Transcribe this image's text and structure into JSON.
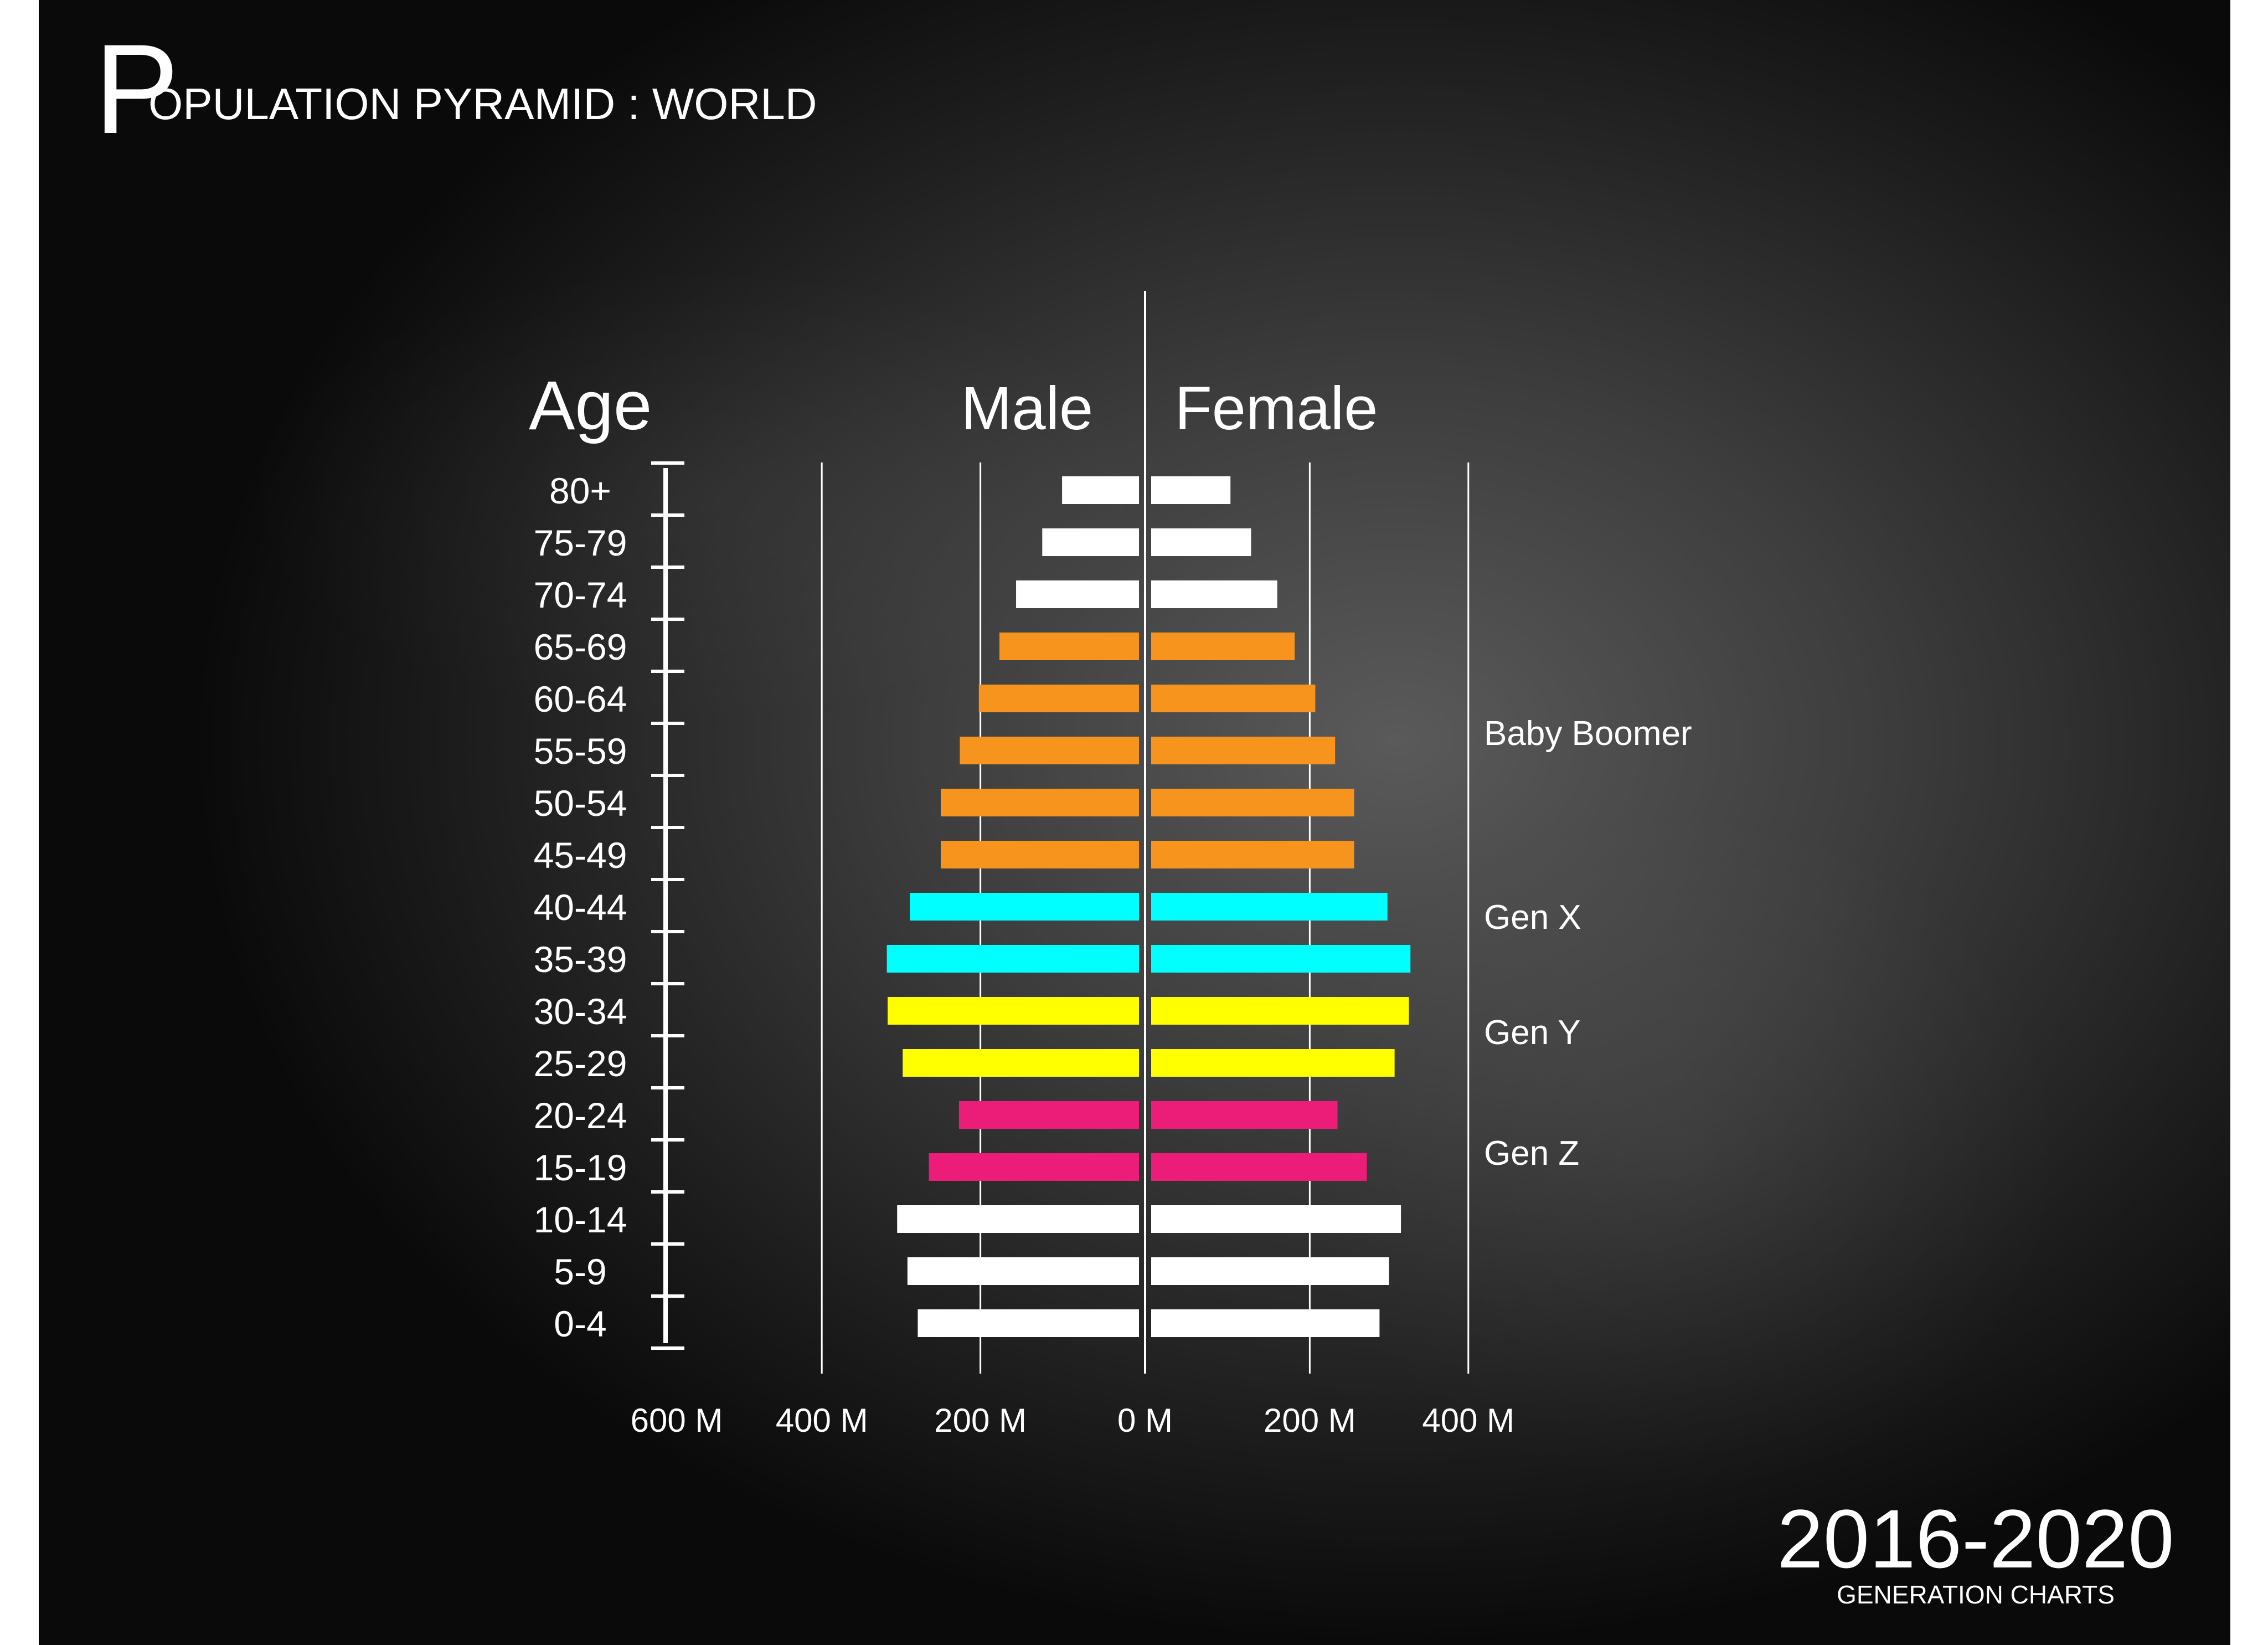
{
  "header": {
    "title_initial": "P",
    "title_rest": "OPULATION PYRAMID : WORLD"
  },
  "footer": {
    "year_range": "2016-2020",
    "subtitle": "GENERATION CHARTS"
  },
  "colors": {
    "background": "#2a2a2a",
    "axis": "#ffffff",
    "other": "#ffffff",
    "baby_boomer": "#f7941d",
    "gen_x": "#00ffff",
    "gen_y": "#ffff00",
    "gen_z": "#ec1c79"
  },
  "chart_data": {
    "type": "bar",
    "subtype": "population-pyramid",
    "title": "POPULATION PYRAMID : WORLD",
    "age_axis_label": "Age",
    "male_label": "Male",
    "female_label": "Female",
    "x_tick_labels": [
      "600 M",
      "400 M",
      "200 M",
      "0 M",
      "200 M",
      "400 M"
    ],
    "x_tick_values": [
      -600,
      -400,
      -200,
      0,
      200,
      400
    ],
    "xlim": [
      -600,
      400
    ],
    "unit": "M",
    "grid": true,
    "categories": [
      "80+",
      "75-79",
      "70-74",
      "65-69",
      "60-64",
      "55-59",
      "50-54",
      "45-49",
      "40-44",
      "35-39",
      "30-34",
      "25-29",
      "20-24",
      "15-19",
      "10-14",
      "5-9",
      "0-4"
    ],
    "series": [
      {
        "name": "Male",
        "values": [
          97,
          122,
          155,
          176,
          202,
          226,
          250,
          250,
          289,
          318,
          317,
          298,
          227,
          265,
          305,
          292,
          279
        ]
      },
      {
        "name": "Female",
        "values": [
          100,
          126,
          159,
          181,
          207,
          232,
          256,
          256,
          298,
          327,
          325,
          307,
          235,
          272,
          315,
          300,
          288
        ]
      }
    ],
    "generation": [
      "other",
      "other",
      "other",
      "baby_boomer",
      "baby_boomer",
      "baby_boomer",
      "baby_boomer",
      "baby_boomer",
      "gen_x",
      "gen_x",
      "gen_y",
      "gen_y",
      "gen_z",
      "gen_z",
      "other",
      "other",
      "other"
    ],
    "annotations": [
      {
        "text": "Baby Boomer",
        "at_category": "55-59"
      },
      {
        "text": "Gen X",
        "at_category": "40-44"
      },
      {
        "text": "Gen Y",
        "at_category": "30-34"
      },
      {
        "text": "Gen Z",
        "at_category": "20-24"
      }
    ]
  }
}
